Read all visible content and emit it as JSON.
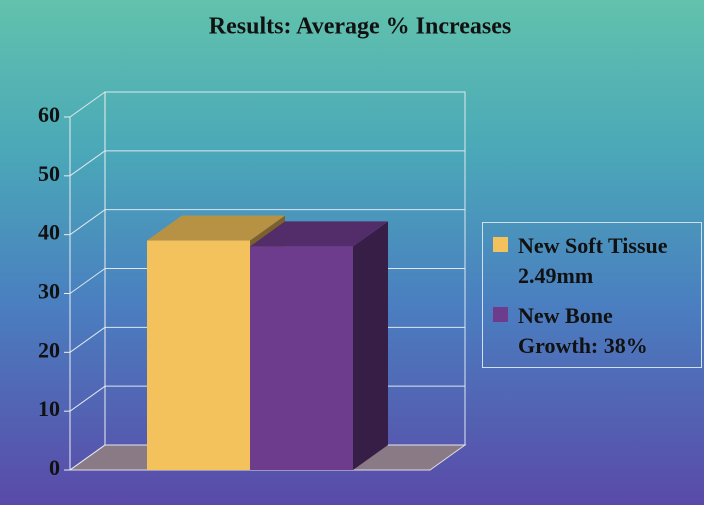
{
  "chart_data": {
    "type": "bar3d",
    "title": "Results:  Average % Increases",
    "categories": [
      null
    ],
    "series": [
      {
        "name": "New Soft Tissue 2.49mm",
        "color": "#f4c25c",
        "values": [
          39
        ]
      },
      {
        "name": "New Bone Growth: 38%",
        "color": "#6e3c8c",
        "values": [
          38
        ]
      }
    ],
    "ylim": [
      0,
      60
    ],
    "yticks": [
      0,
      10,
      20,
      30,
      40,
      50,
      60
    ],
    "grid": true,
    "legend": "right"
  }
}
